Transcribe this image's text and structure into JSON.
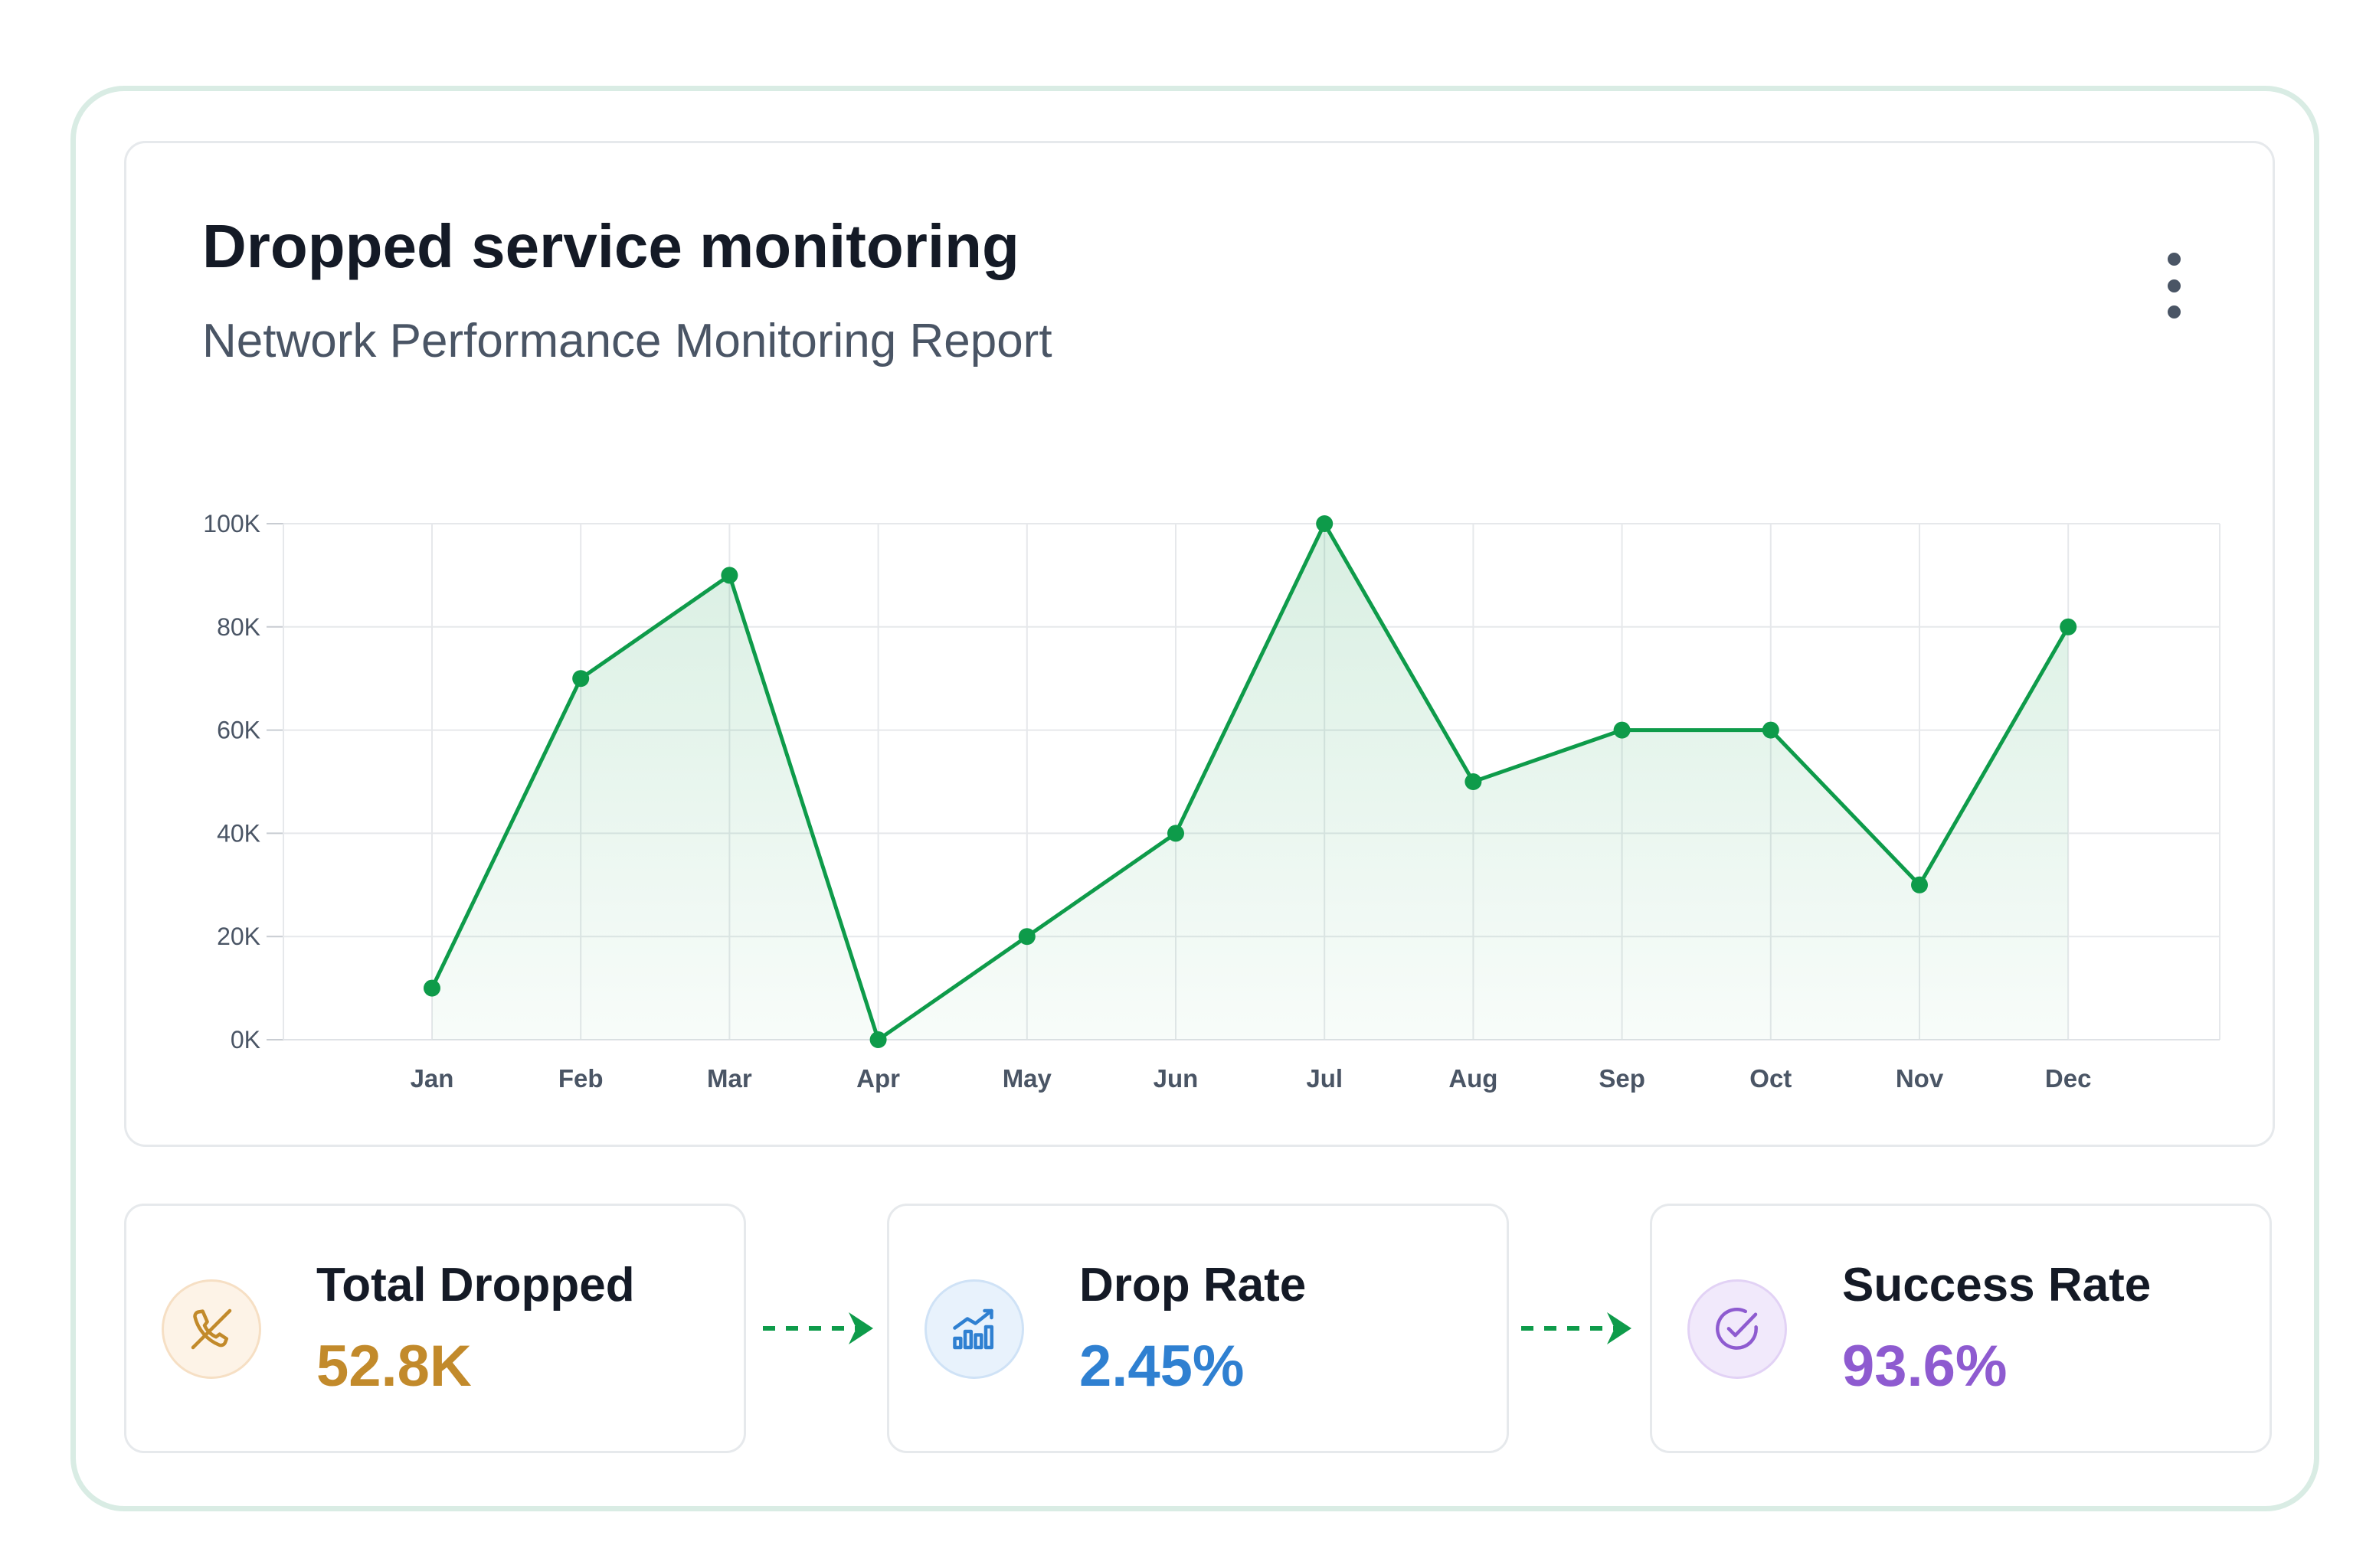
{
  "header": {
    "title": "Dropped service monitoring",
    "subtitle": "Network Performance Monitoring Report",
    "menu_icon": "more-vertical-icon"
  },
  "chart_data": {
    "type": "area",
    "categories": [
      "Jan",
      "Feb",
      "Mar",
      "Apr",
      "May",
      "Jun",
      "Jul",
      "Aug",
      "Sep",
      "Oct",
      "Nov",
      "Dec"
    ],
    "series": [
      {
        "values": [
          10000,
          70000,
          90000,
          0,
          20000,
          40000,
          100000,
          50000,
          60000,
          60000,
          30000,
          80000
        ]
      }
    ],
    "y_ticks": [
      "0K",
      "20K",
      "40K",
      "60K",
      "80K",
      "100K"
    ],
    "y_tick_values": [
      0,
      20000,
      40000,
      60000,
      80000,
      100000
    ],
    "ylim": [
      0,
      100000
    ],
    "grid": true,
    "line_color": "#0e9b4a",
    "fill_color": "#0e9b4a"
  },
  "kpis": [
    {
      "label": "Total Dropped",
      "value": "52.8K",
      "icon": "phone-missed-icon",
      "color": "#c28a2b",
      "bg": "#fdf3e7",
      "border": "#f6dfc4"
    },
    {
      "label": "Drop Rate",
      "value": "2.45%",
      "icon": "bar-chart-trend-icon",
      "color": "#2f80d1",
      "bg": "#e8f2fc",
      "border": "#cfe2f6"
    },
    {
      "label": "Success Rate",
      "value": "93.6%",
      "icon": "check-circle-icon",
      "color": "#8e5bd0",
      "bg": "#f1e9fb",
      "border": "#e2d2f5"
    }
  ],
  "connector_color": "#0e9b4a"
}
